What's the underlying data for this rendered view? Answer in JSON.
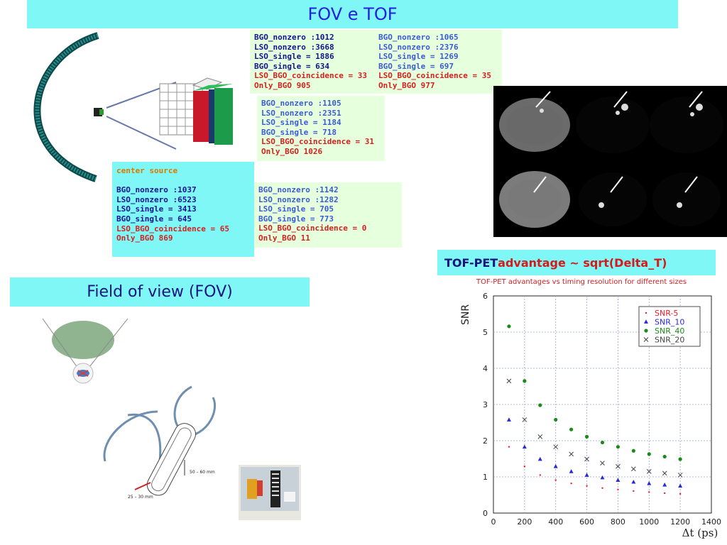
{
  "slide": {
    "title": "FOV e TOF",
    "fov_heading": "Field of view (FOV)",
    "tof_heading": {
      "part1": "TOF-PET ",
      "part2": "advantage ~ sqrt(Delta_T)"
    }
  },
  "boxes": {
    "box1": [
      "BGO_nonzero :1012",
      "LSO_nonzero :3668",
      "LSO_single = 1886",
      "BGO_single = 634",
      "LSO_BGO_coincidence = 33",
      "Only_BGO 905"
    ],
    "box2": [
      "BGO_nonzero :1065",
      "LSO_nonzero :2376",
      "LSO_single = 1269",
      "BGO_single = 697",
      "LSO_BGO_coincidence = 35",
      "Only_BGO 977"
    ],
    "box3": [
      "BGO_nonzero :1105",
      "LSO_nonzero :2351",
      "LSO_single = 1184",
      "BGO_single = 718",
      "LSO_BGO_coincidence = 31",
      "Only_BGO 1026"
    ],
    "center": {
      "heading": "center source",
      "lines": [
        "BGO_nonzero :1037",
        "LSO_nonzero :6523",
        "LSO_single = 3413",
        "BGO_single = 645",
        "LSO_BGO_coincidence = 65",
        "Only_BGO 869"
      ]
    },
    "box5": [
      "BGO_nonzero :1142",
      "LSO_nonzero :1282",
      "LSO_single = 705",
      "BGO_single = 773",
      "LSO_BGO_coincidence = 0",
      "Only_BGO 11"
    ]
  },
  "diagram": {
    "dim_a": "50 – 60 mm",
    "dim_b": "25 – 30 mm"
  },
  "chart_data": {
    "type": "scatter",
    "title": "TOF-PET advantages vs timing resolution for different sizes",
    "xlabel": "Δt (ps)",
    "ylabel": "SNR",
    "xlim": [
      0,
      1400
    ],
    "ylim": [
      0,
      6
    ],
    "xticks": [
      0,
      200,
      400,
      600,
      800,
      1000,
      1200,
      1400
    ],
    "yticks": [
      0,
      1,
      2,
      3,
      4,
      5,
      6
    ],
    "grid": true,
    "legend": "top-right",
    "x": [
      100,
      200,
      300,
      400,
      500,
      600,
      700,
      800,
      900,
      1000,
      1100,
      1200
    ],
    "series": [
      {
        "name": "SNR-5",
        "color": "#e8202a",
        "marker": "dot",
        "values": [
          1.83,
          1.29,
          1.05,
          0.91,
          0.82,
          0.75,
          0.69,
          0.65,
          0.61,
          0.58,
          0.55,
          0.53
        ]
      },
      {
        "name": "SNR_10",
        "color": "#2a2ad4",
        "marker": "triangle",
        "values": [
          2.58,
          1.83,
          1.49,
          1.29,
          1.15,
          1.05,
          0.98,
          0.91,
          0.86,
          0.82,
          0.78,
          0.75
        ]
      },
      {
        "name": "SNR_40",
        "color": "#1a8a1a",
        "marker": "circle",
        "values": [
          5.16,
          3.65,
          2.98,
          2.58,
          2.31,
          2.11,
          1.95,
          1.83,
          1.72,
          1.63,
          1.56,
          1.49
        ]
      },
      {
        "name": "SNR_20",
        "color": "#444444",
        "marker": "cross",
        "values": [
          3.65,
          2.58,
          2.11,
          1.83,
          1.63,
          1.49,
          1.38,
          1.29,
          1.22,
          1.15,
          1.1,
          1.05
        ]
      }
    ]
  }
}
